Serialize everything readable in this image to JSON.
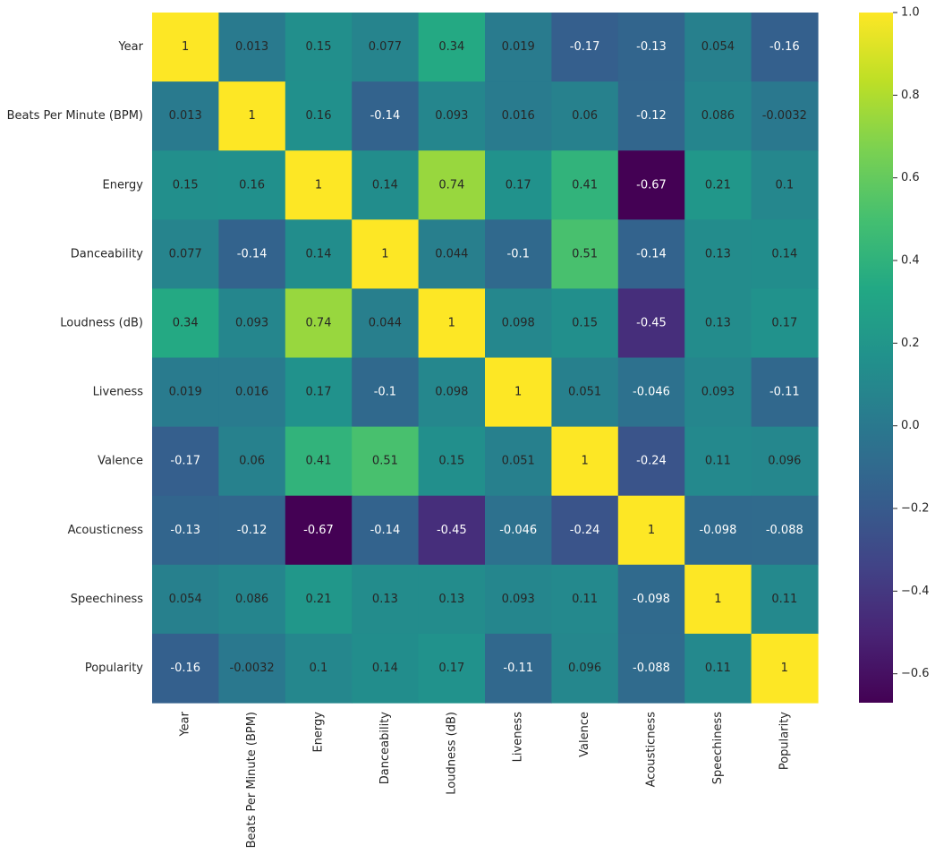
{
  "chart_data": {
    "type": "heatmap",
    "title": "",
    "xlabel": "",
    "ylabel": "",
    "colormap": "viridis",
    "rows": [
      "Year",
      "Beats Per Minute (BPM)",
      "Energy",
      "Danceability",
      "Loudness (dB)",
      "Liveness",
      "Valence",
      "Acousticness",
      "Speechiness",
      "Popularity"
    ],
    "columns": [
      "Year",
      "Beats Per Minute (BPM)",
      "Energy",
      "Danceability",
      "Loudness (dB)",
      "Liveness",
      "Valence",
      "Acousticness",
      "Speechiness",
      "Popularity"
    ],
    "values": [
      [
        1,
        0.013,
        0.15,
        0.077,
        0.34,
        0.019,
        -0.17,
        -0.13,
        0.054,
        -0.16
      ],
      [
        0.013,
        1,
        0.16,
        -0.14,
        0.093,
        0.016,
        0.06,
        -0.12,
        0.086,
        -0.0032
      ],
      [
        0.15,
        0.16,
        1,
        0.14,
        0.74,
        0.17,
        0.41,
        -0.67,
        0.21,
        0.1
      ],
      [
        0.077,
        -0.14,
        0.14,
        1,
        0.044,
        -0.1,
        0.51,
        -0.14,
        0.13,
        0.14
      ],
      [
        0.34,
        0.093,
        0.74,
        0.044,
        1,
        0.098,
        0.15,
        -0.45,
        0.13,
        0.17
      ],
      [
        0.019,
        0.016,
        0.17,
        -0.1,
        0.098,
        1,
        0.051,
        -0.046,
        0.093,
        -0.11
      ],
      [
        -0.17,
        0.06,
        0.41,
        0.51,
        0.15,
        0.051,
        1,
        -0.24,
        0.11,
        0.096
      ],
      [
        -0.13,
        -0.12,
        -0.67,
        -0.14,
        -0.45,
        -0.046,
        -0.24,
        1,
        -0.098,
        -0.088
      ],
      [
        0.054,
        0.086,
        0.21,
        0.13,
        0.13,
        0.093,
        0.11,
        -0.098,
        1,
        0.11
      ],
      [
        -0.16,
        -0.0032,
        0.1,
        0.14,
        0.17,
        -0.11,
        0.096,
        -0.088,
        0.11,
        1
      ]
    ],
    "annotations": [
      [
        "1",
        "0.013",
        "0.15",
        "0.077",
        "0.34",
        "0.019",
        "-0.17",
        "-0.13",
        "0.054",
        "-0.16"
      ],
      [
        "0.013",
        "1",
        "0.16",
        "-0.14",
        "0.093",
        "0.016",
        "0.06",
        "-0.12",
        "0.086",
        "-0.0032"
      ],
      [
        "0.15",
        "0.16",
        "1",
        "0.14",
        "0.74",
        "0.17",
        "0.41",
        "-0.67",
        "0.21",
        "0.1"
      ],
      [
        "0.077",
        "-0.14",
        "0.14",
        "1",
        "0.044",
        "-0.1",
        "0.51",
        "-0.14",
        "0.13",
        "0.14"
      ],
      [
        "0.34",
        "0.093",
        "0.74",
        "0.044",
        "1",
        "0.098",
        "0.15",
        "-0.45",
        "0.13",
        "0.17"
      ],
      [
        "0.019",
        "0.016",
        "0.17",
        "-0.1",
        "0.098",
        "1",
        "0.051",
        "-0.046",
        "0.093",
        "-0.11"
      ],
      [
        "-0.17",
        "0.06",
        "0.41",
        "0.51",
        "0.15",
        "0.051",
        "1",
        "-0.24",
        "0.11",
        "0.096"
      ],
      [
        "-0.13",
        "-0.12",
        "-0.67",
        "-0.14",
        "-0.45",
        "-0.046",
        "-0.24",
        "1",
        "-0.098",
        "-0.088"
      ],
      [
        "0.054",
        "0.086",
        "0.21",
        "0.13",
        "0.13",
        "0.093",
        "0.11",
        "-0.098",
        "1",
        "0.11"
      ],
      [
        "-0.16",
        "-0.0032",
        "0.1",
        "0.14",
        "0.17",
        "-0.11",
        "0.096",
        "-0.088",
        "0.11",
        "1"
      ]
    ],
    "color_range": [
      -0.67,
      1.0
    ],
    "colorbar": {
      "ticks": [
        1.0,
        0.8,
        0.6,
        0.4,
        0.2,
        0.0,
        -0.2,
        -0.4,
        -0.6
      ],
      "tick_labels": [
        "1.0",
        "0.8",
        "0.6",
        "0.4",
        "0.2",
        "0.0",
        "−0.2",
        "−0.4",
        "−0.6"
      ]
    },
    "grid": false,
    "legend": "right colorbar"
  }
}
